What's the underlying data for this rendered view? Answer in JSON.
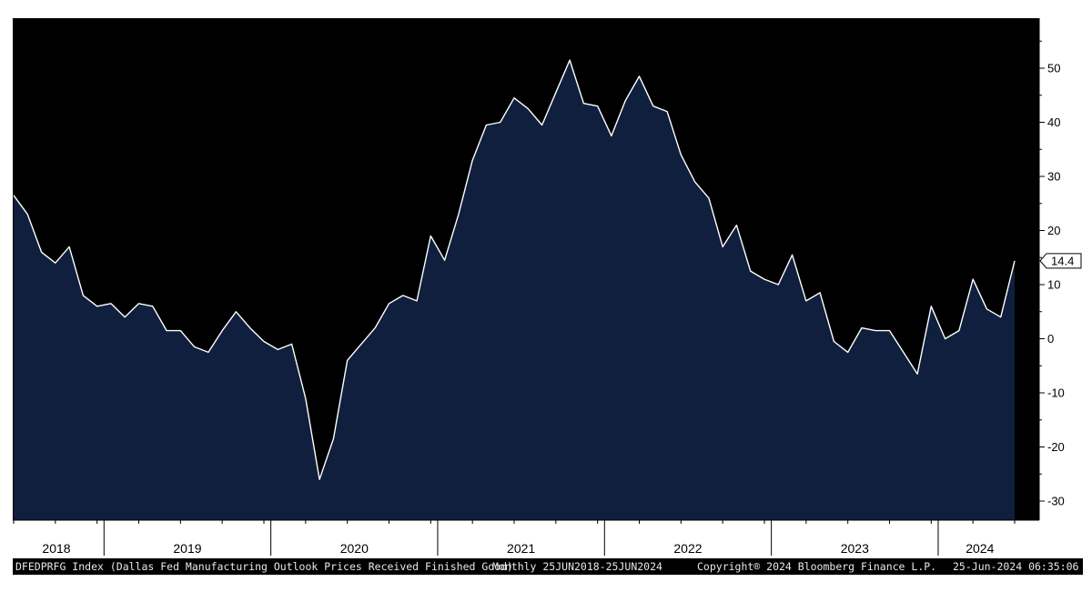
{
  "colors": {
    "background": "#000000",
    "area_fill": "#0f1f3d",
    "line": "#ffffff",
    "axis": "#ffffff",
    "label_bg": "#ffffff",
    "label_text": "#000000"
  },
  "chart_data": {
    "type": "area",
    "title": "",
    "xlabel": "",
    "ylabel": "",
    "ylim": [
      -33,
      58
    ],
    "yticks": [
      50,
      40,
      30,
      20,
      10,
      0,
      -10,
      -20,
      -30
    ],
    "year_labels": [
      "2018",
      "2019",
      "2020",
      "2021",
      "2022",
      "2023",
      "2024"
    ],
    "last_value_label": "14.4",
    "grid": false,
    "series": [
      {
        "x": [
          "2018-06",
          "2018-07",
          "2018-08",
          "2018-09",
          "2018-10",
          "2018-11",
          "2018-12",
          "2019-01",
          "2019-02",
          "2019-03",
          "2019-04",
          "2019-05",
          "2019-06",
          "2019-07",
          "2019-08",
          "2019-09",
          "2019-10",
          "2019-11",
          "2019-12",
          "2020-01",
          "2020-02",
          "2020-03",
          "2020-04",
          "2020-05",
          "2020-06",
          "2020-07",
          "2020-08",
          "2020-09",
          "2020-10",
          "2020-11",
          "2020-12",
          "2021-01",
          "2021-02",
          "2021-03",
          "2021-04",
          "2021-05",
          "2021-06",
          "2021-07",
          "2021-08",
          "2021-09",
          "2021-10",
          "2021-11",
          "2021-12",
          "2022-01",
          "2022-02",
          "2022-03",
          "2022-04",
          "2022-05",
          "2022-06",
          "2022-07",
          "2022-08",
          "2022-09",
          "2022-10",
          "2022-11",
          "2022-12",
          "2023-01",
          "2023-02",
          "2023-03",
          "2023-04",
          "2023-05",
          "2023-06",
          "2023-07",
          "2023-08",
          "2023-09",
          "2023-10",
          "2023-11",
          "2023-12",
          "2024-01",
          "2024-02",
          "2024-03",
          "2024-04",
          "2024-05",
          "2024-06"
        ],
        "values": [
          26.5,
          23,
          16,
          14,
          17,
          8,
          6,
          6.5,
          4,
          6.5,
          6,
          1.5,
          1.5,
          -1.5,
          -2.5,
          1.5,
          5,
          2,
          -0.5,
          -2,
          -1,
          -11,
          -26,
          -18.5,
          -4,
          -1,
          2,
          6.5,
          8,
          7,
          19,
          14.5,
          23,
          33,
          39.5,
          40,
          44.5,
          42.5,
          39.5,
          45.5,
          51.5,
          43.5,
          43,
          37.5,
          44,
          48.5,
          43,
          42,
          34,
          29,
          26,
          17,
          21,
          12.5,
          11,
          10,
          15.5,
          7,
          8.5,
          -0.5,
          -2.5,
          2,
          1.5,
          1.5,
          -2.5,
          -6.5,
          6,
          0,
          1.5,
          11,
          5.5,
          4,
          14.4
        ]
      }
    ]
  },
  "footer": {
    "ticker_desc": "DFEDPRFG Index (Dallas Fed Manufacturing Outlook Prices Received Finished Good)",
    "range": "Monthly 25JUN2018-25JUN2024",
    "copyright": "Copyright® 2024 Bloomberg Finance L.P.",
    "timestamp": "25-Jun-2024 06:35:06"
  }
}
